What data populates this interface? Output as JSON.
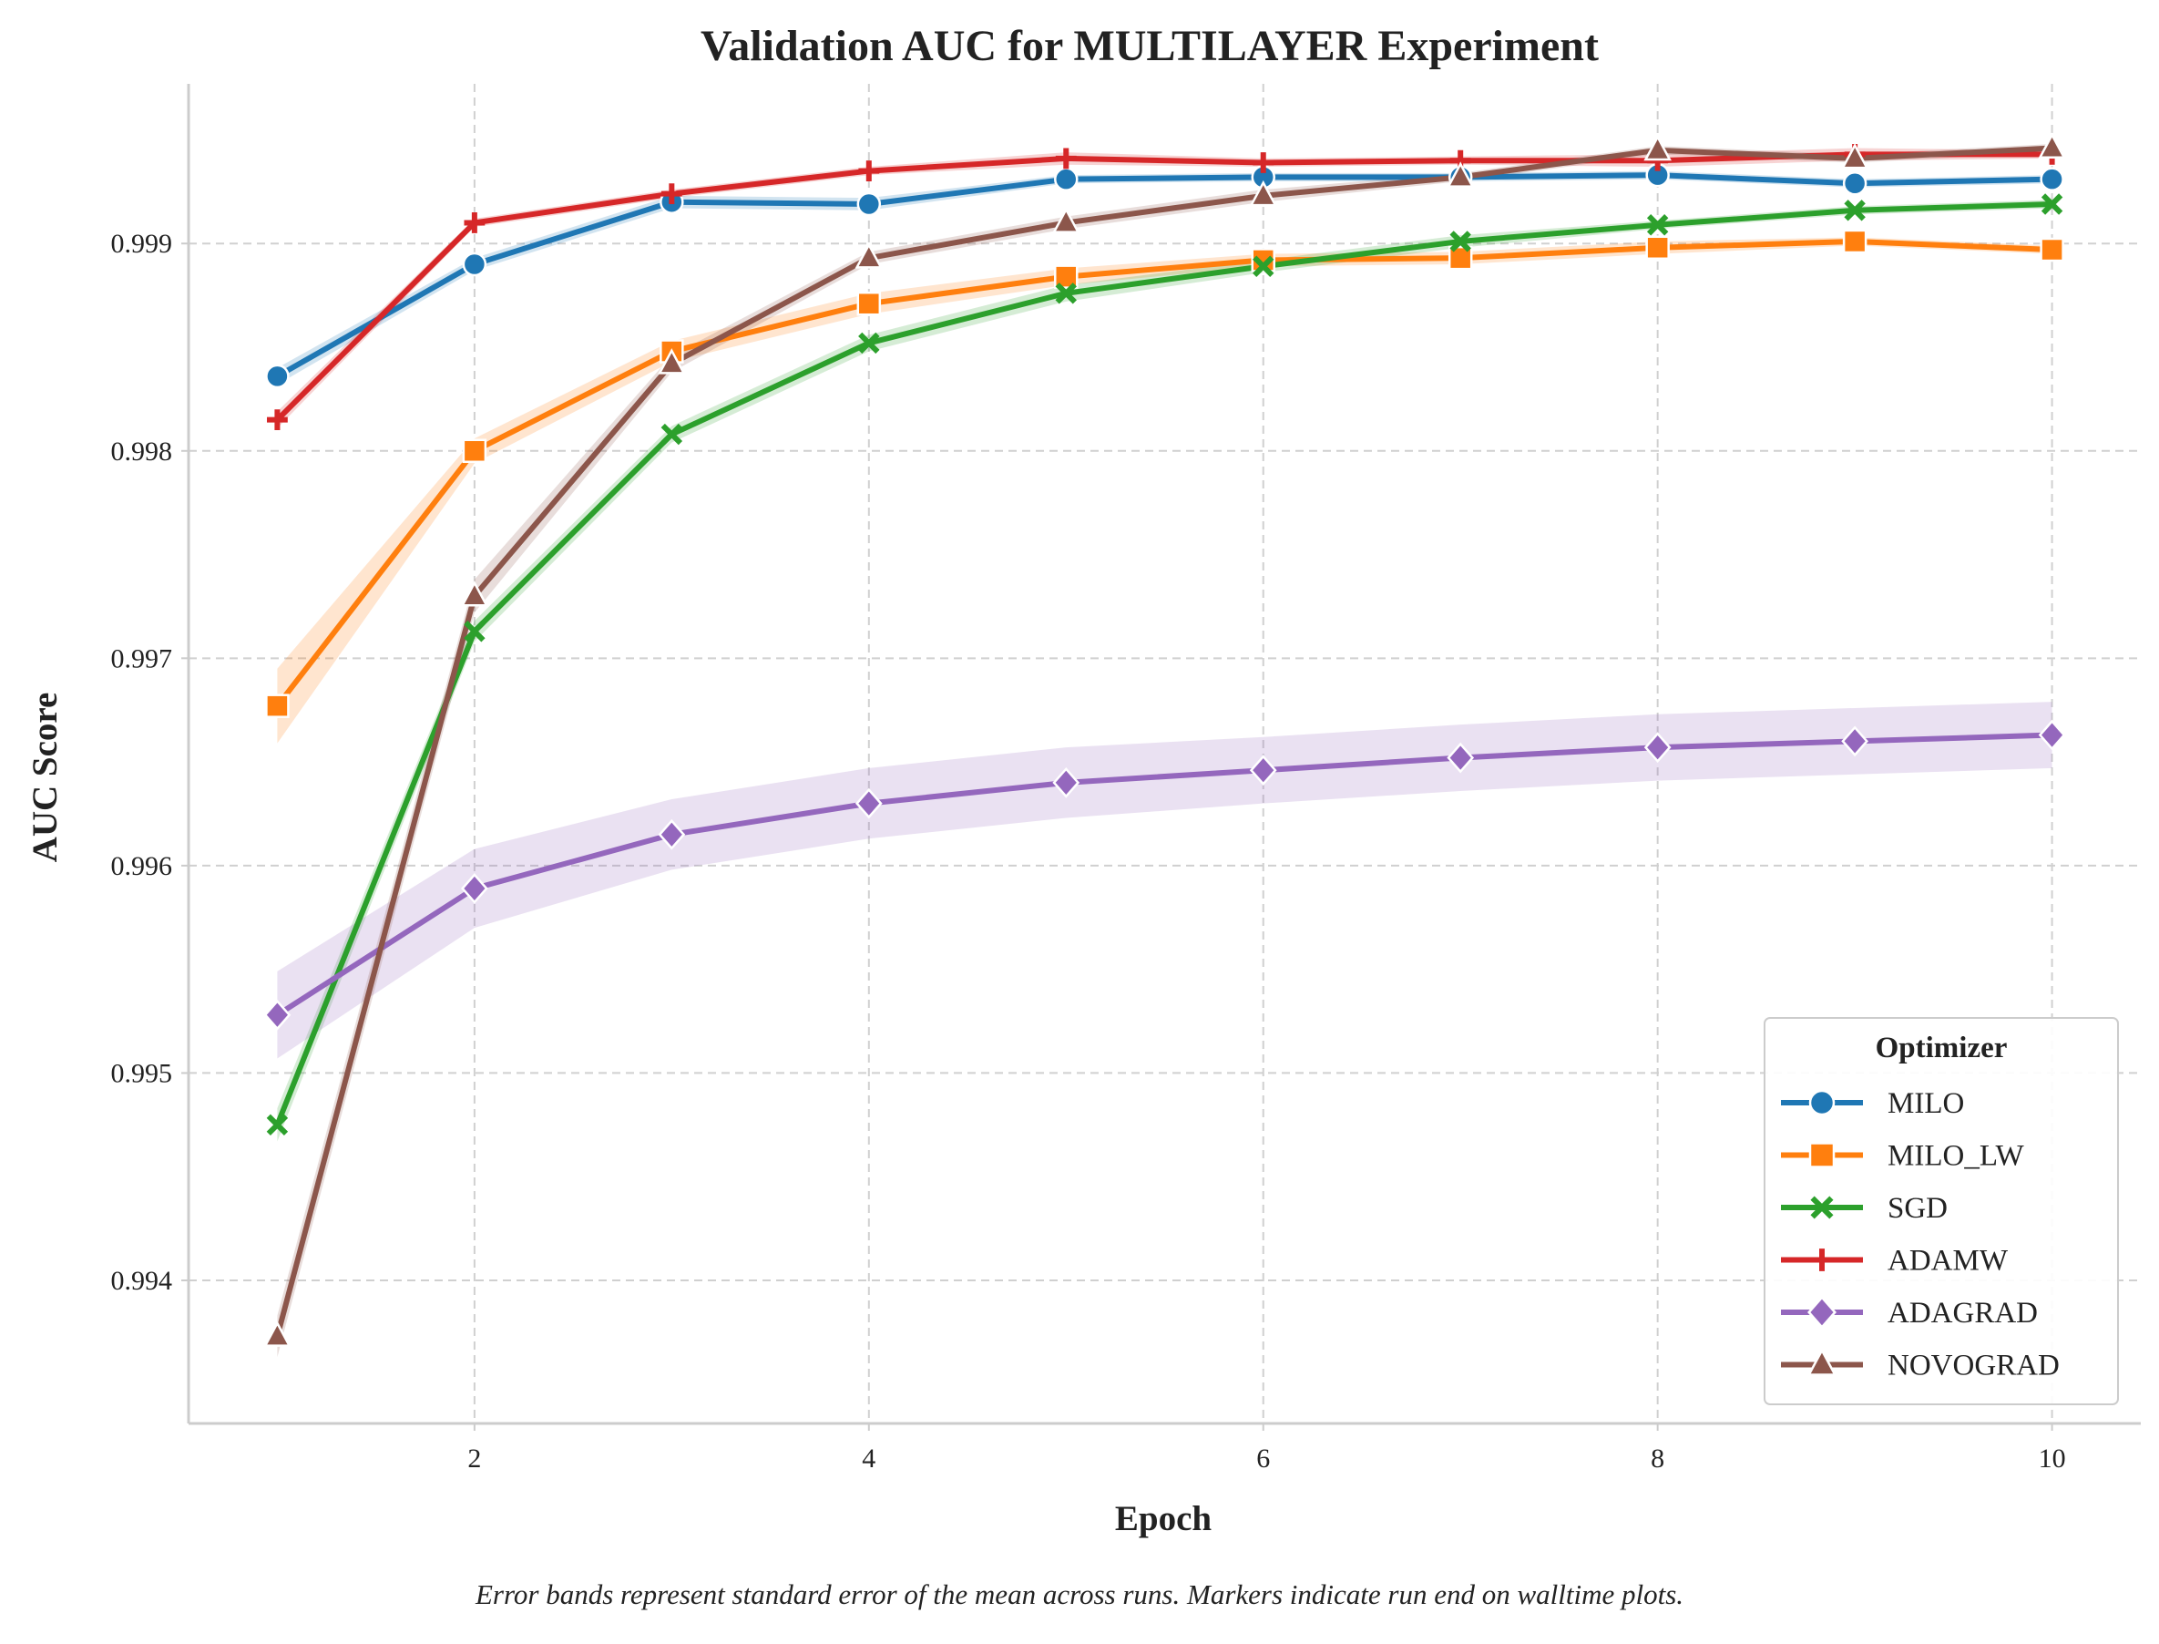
{
  "chart_data": {
    "type": "line",
    "title": "Validation AUC for MULTILAYER Experiment",
    "xlabel": "Epoch",
    "ylabel": "AUC Score",
    "xlim": [
      0.55,
      10.45
    ],
    "ylim": [
      0.99331,
      0.99977
    ],
    "xticks": [
      2,
      4,
      6,
      8,
      10
    ],
    "yticks": [
      0.994,
      0.995,
      0.996,
      0.997,
      0.998,
      0.999
    ],
    "grid": true,
    "legend": {
      "title": "Optimizer",
      "placement": "lower-right"
    },
    "x": [
      1,
      2,
      3,
      4,
      5,
      6,
      7,
      8,
      9,
      10
    ],
    "series": [
      {
        "name": "MILO",
        "color": "#1f77b4",
        "marker": "circle",
        "values": [
          0.99836,
          0.9989,
          0.9992,
          0.99919,
          0.99931,
          0.99932,
          0.99932,
          0.99933,
          0.99929,
          0.99931
        ],
        "sem": [
          4e-05,
          3e-05,
          3e-05,
          3e-05,
          2e-05,
          2e-05,
          2e-05,
          2e-05,
          2e-05,
          2e-05
        ]
      },
      {
        "name": "MILO_LW",
        "color": "#ff7f0e",
        "marker": "square",
        "values": [
          0.99677,
          0.998,
          0.99848,
          0.99871,
          0.99884,
          0.99892,
          0.99893,
          0.99898,
          0.99901,
          0.99897
        ],
        "sem": [
          0.00018,
          6e-05,
          5e-05,
          5e-05,
          4e-05,
          3e-05,
          3e-05,
          3e-05,
          2e-05,
          2e-05
        ]
      },
      {
        "name": "SGD",
        "color": "#2ca02c",
        "marker": "x",
        "values": [
          0.99475,
          0.99713,
          0.99808,
          0.99852,
          0.99876,
          0.99889,
          0.99901,
          0.99909,
          0.99916,
          0.99919
        ],
        "sem": [
          8e-05,
          5e-05,
          4e-05,
          4e-05,
          4e-05,
          3e-05,
          3e-05,
          2e-05,
          2e-05,
          2e-05
        ]
      },
      {
        "name": "ADAMW",
        "color": "#d62728",
        "marker": "plus",
        "values": [
          0.99815,
          0.9991,
          0.99924,
          0.99935,
          0.99941,
          0.99939,
          0.9994,
          0.9994,
          0.99943,
          0.99943
        ],
        "sem": [
          4e-05,
          2e-05,
          2e-05,
          2e-05,
          3e-05,
          2e-05,
          2e-05,
          3e-05,
          3e-05,
          2e-05
        ]
      },
      {
        "name": "ADAGRAD",
        "color": "#9467bd",
        "marker": "diamond",
        "values": [
          0.99528,
          0.99589,
          0.99615,
          0.9963,
          0.9964,
          0.99646,
          0.99652,
          0.99657,
          0.9966,
          0.99663
        ],
        "sem": [
          0.00021,
          0.00019,
          0.00017,
          0.00017,
          0.00017,
          0.00016,
          0.00016,
          0.00016,
          0.00016,
          0.00016
        ]
      },
      {
        "name": "NOVOGRAD",
        "color": "#8c564b",
        "marker": "triangle",
        "values": [
          0.99373,
          0.9973,
          0.99842,
          0.99893,
          0.9991,
          0.99923,
          0.99932,
          0.99945,
          0.99941,
          0.99946
        ],
        "sem": [
          0.0001,
          8e-05,
          4e-05,
          3e-05,
          3e-05,
          3e-05,
          2e-05,
          2e-05,
          2e-05,
          2e-05
        ]
      }
    ]
  },
  "caption": "Error bands represent standard error of the mean across runs. Markers indicate run end on walltime plots."
}
